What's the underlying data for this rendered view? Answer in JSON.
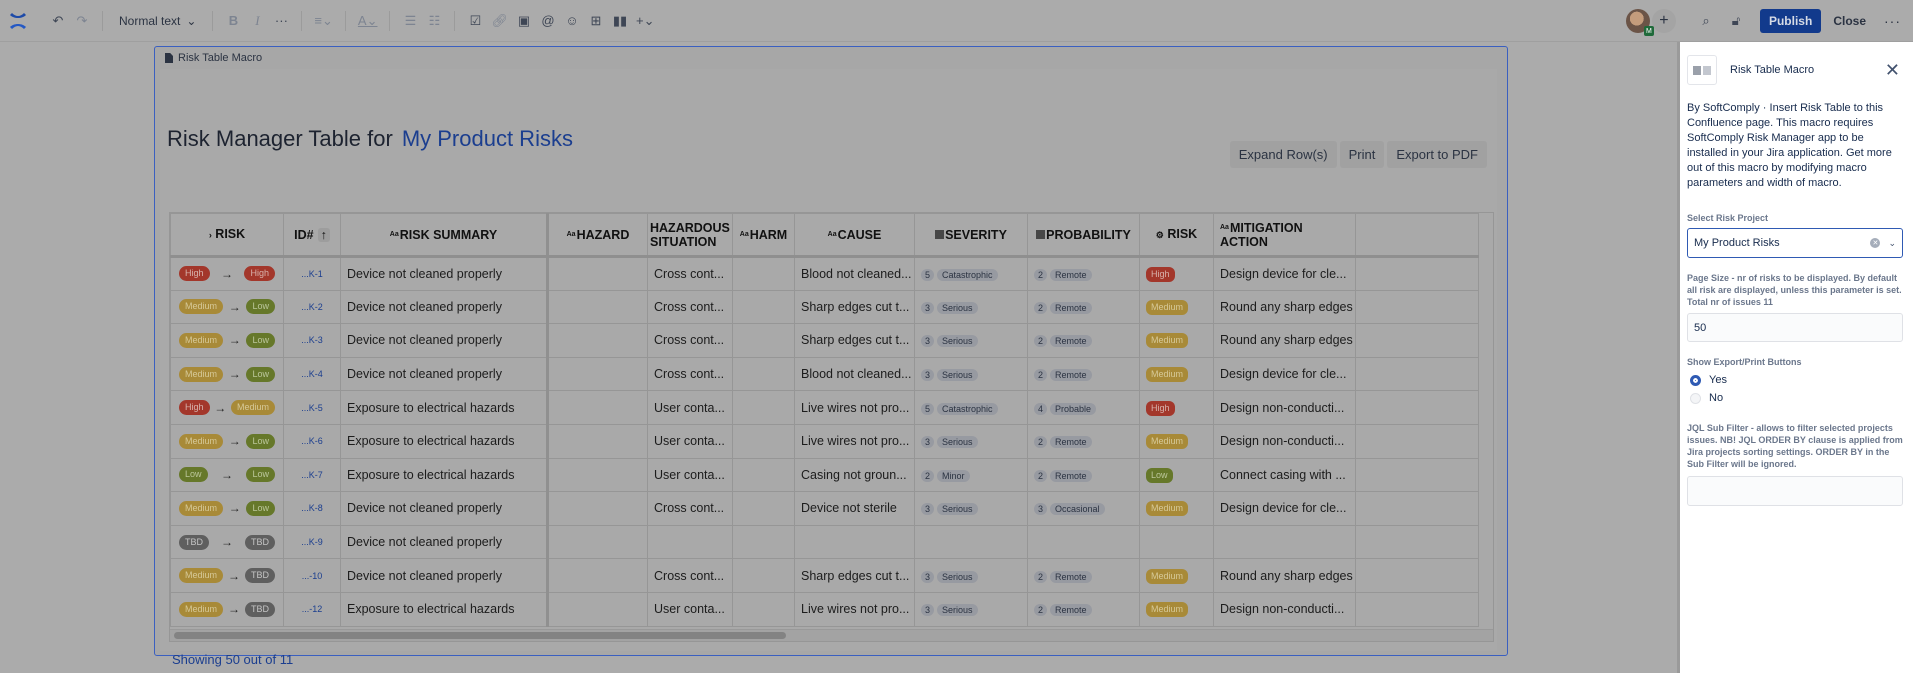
{
  "toolbar": {
    "text_style": "Normal text",
    "icons": [
      "confluence-logo",
      "undo",
      "redo",
      "bold",
      "italic",
      "more-formatting",
      "align",
      "text-color",
      "bullet-list",
      "numbered-list",
      "action-item",
      "link",
      "image",
      "mention",
      "emoji",
      "table",
      "layouts",
      "insert"
    ],
    "publish_label": "Publish",
    "close_label": "Close",
    "avatar_badge": "M"
  },
  "macro": {
    "label": "Risk Table Macro",
    "title_prefix": "Risk Manager Table for",
    "project": "My Product Risks",
    "buttons": {
      "expand": "Expand Row(s)",
      "print": "Print",
      "export": "Export to PDF"
    },
    "columns": [
      "RISK",
      "ID#",
      "RISK SUMMARY",
      "HAZARD",
      "HAZARDOUS SITUATION",
      "HARM",
      "CAUSE",
      "SEVERITY",
      "PROBABILITY",
      "RISK",
      "MITIGATION ACTION"
    ],
    "rows": [
      {
        "initial": "High",
        "residual": "High",
        "id": "...K-1",
        "summary": "Device not cleaned properly",
        "hazard": "",
        "situation": "Cross cont...",
        "harm": "",
        "cause": "Blood not cleaned...",
        "sev_num": "5",
        "sev": "Catastrophic",
        "prob_num": "2",
        "prob": "Remote",
        "risk": "High",
        "mitigation": "Design device for cle..."
      },
      {
        "initial": "Medium",
        "residual": "Low",
        "id": "...K-2",
        "summary": "Device not cleaned properly",
        "hazard": "",
        "situation": "Cross cont...",
        "harm": "",
        "cause": "Sharp edges cut t...",
        "sev_num": "3",
        "sev": "Serious",
        "prob_num": "2",
        "prob": "Remote",
        "risk": "Medium",
        "mitigation": "Round any sharp edges"
      },
      {
        "initial": "Medium",
        "residual": "Low",
        "id": "...K-3",
        "summary": "Device not cleaned properly",
        "hazard": "",
        "situation": "Cross cont...",
        "harm": "",
        "cause": "Sharp edges cut t...",
        "sev_num": "3",
        "sev": "Serious",
        "prob_num": "2",
        "prob": "Remote",
        "risk": "Medium",
        "mitigation": "Round any sharp edges"
      },
      {
        "initial": "Medium",
        "residual": "Low",
        "id": "...K-4",
        "summary": "Device not cleaned properly",
        "hazard": "",
        "situation": "Cross cont...",
        "harm": "",
        "cause": "Blood not cleaned...",
        "sev_num": "3",
        "sev": "Serious",
        "prob_num": "2",
        "prob": "Remote",
        "risk": "Medium",
        "mitigation": "Design device for cle..."
      },
      {
        "initial": "High",
        "residual": "Medium",
        "id": "...K-5",
        "summary": "Exposure to electrical hazards",
        "hazard": "",
        "situation": "User conta...",
        "harm": "",
        "cause": "Live wires not pro...",
        "sev_num": "5",
        "sev": "Catastrophic",
        "prob_num": "4",
        "prob": "Probable",
        "risk": "High",
        "mitigation": "Design non-conducti..."
      },
      {
        "initial": "Medium",
        "residual": "Low",
        "id": "...K-6",
        "summary": "Exposure to electrical hazards",
        "hazard": "",
        "situation": "User conta...",
        "harm": "",
        "cause": "Live wires not pro...",
        "sev_num": "3",
        "sev": "Serious",
        "prob_num": "2",
        "prob": "Remote",
        "risk": "Medium",
        "mitigation": "Design non-conducti..."
      },
      {
        "initial": "Low",
        "residual": "Low",
        "id": "...K-7",
        "summary": "Exposure to electrical hazards",
        "hazard": "",
        "situation": "User conta...",
        "harm": "",
        "cause": "Casing not groun...",
        "sev_num": "2",
        "sev": "Minor",
        "prob_num": "2",
        "prob": "Remote",
        "risk": "Low",
        "mitigation": "Connect casing with ..."
      },
      {
        "initial": "Medium",
        "residual": "Low",
        "id": "...K-8",
        "summary": "Device not cleaned properly",
        "hazard": "",
        "situation": "Cross cont...",
        "harm": "",
        "cause": "Device not sterile",
        "sev_num": "3",
        "sev": "Serious",
        "prob_num": "3",
        "prob": "Occasional",
        "risk": "Medium",
        "mitigation": "Design device for cle..."
      },
      {
        "initial": "TBD",
        "residual": "TBD",
        "id": "...K-9",
        "summary": "Device not cleaned properly",
        "hazard": "",
        "situation": "",
        "harm": "",
        "cause": "",
        "sev_num": "",
        "sev": "",
        "prob_num": "",
        "prob": "",
        "risk": "",
        "mitigation": ""
      },
      {
        "initial": "Medium",
        "residual": "TBD",
        "id": "...-10",
        "summary": "Device not cleaned properly",
        "hazard": "",
        "situation": "Cross cont...",
        "harm": "",
        "cause": "Sharp edges cut t...",
        "sev_num": "3",
        "sev": "Serious",
        "prob_num": "2",
        "prob": "Remote",
        "risk": "Medium",
        "mitigation": "Round any sharp edges"
      },
      {
        "initial": "Medium",
        "residual": "TBD",
        "id": "...-12",
        "summary": "Exposure to electrical hazards",
        "hazard": "",
        "situation": "User conta...",
        "harm": "",
        "cause": "Live wires not pro...",
        "sev_num": "3",
        "sev": "Serious",
        "prob_num": "2",
        "prob": "Remote",
        "risk": "Medium",
        "mitigation": "Design non-conducti..."
      }
    ],
    "showing": "Showing 50 out of 11"
  },
  "panel": {
    "title": "Risk Table Macro",
    "description": "By SoftComply · Insert Risk Table to this Confluence page. This macro requires SoftComply Risk Manager app to be installed in your Jira application. Get more out of this macro by modifying macro parameters and width of macro.",
    "project_label": "Select Risk Project",
    "project_value": "My Product Risks",
    "page_size_label": "Page Size - nr of risks to be displayed. By default all risk are displayed, unless this parameter is set. Total nr of issues 11",
    "page_size_value": "50",
    "export_label": "Show Export/Print Buttons",
    "export_options": [
      "Yes",
      "No"
    ],
    "export_selected": "Yes",
    "jql_label": "JQL Sub Filter - allows to filter selected projects issues. NB! JQL ORDER BY clause is applied from Jira projects sorting settings. ORDER BY in the Sub Filter will be ignored.",
    "jql_value": ""
  },
  "colors": {
    "high": "#a3372b",
    "medium": "#a88a38",
    "low": "#66782a",
    "tbd": "#5f5f5f",
    "accent": "#123a8c",
    "link": "#1b3e8f"
  }
}
